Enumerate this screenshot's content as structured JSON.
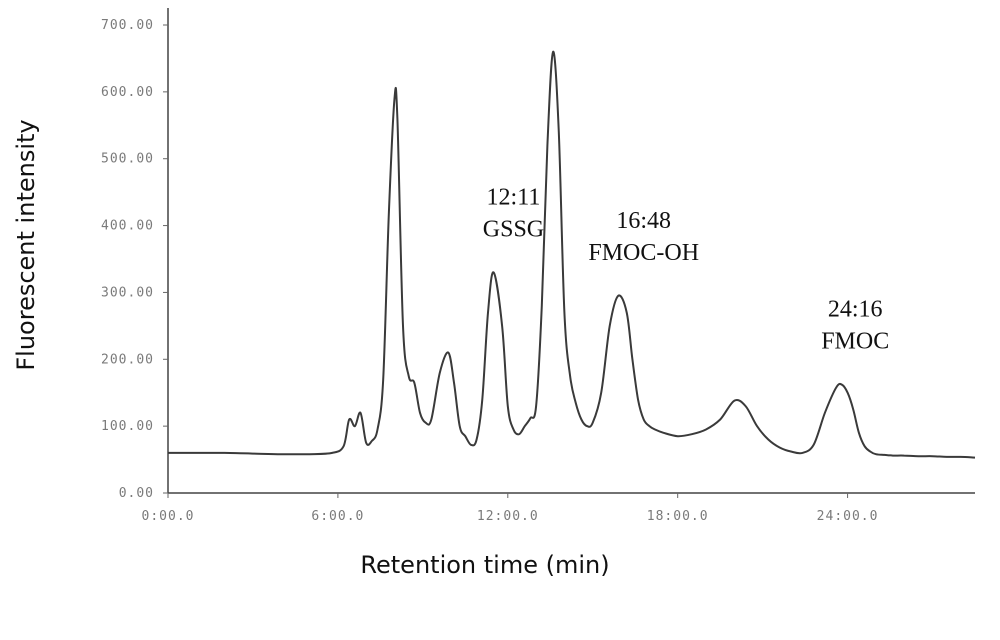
{
  "chart_data": {
    "type": "line",
    "title": "",
    "xlabel": "Retention time (min)",
    "ylabel": "Fluorescent intensity",
    "xlim": [
      0,
      28.5
    ],
    "ylim": [
      0,
      700
    ],
    "x_ticks": [
      0,
      6,
      12,
      18,
      24
    ],
    "x_tick_labels": [
      "0:00.0",
      "6:00.0",
      "12:00.0",
      "18:00.0",
      "24:00.0"
    ],
    "y_ticks": [
      0,
      100,
      200,
      300,
      400,
      500,
      600,
      700
    ],
    "y_tick_labels": [
      "0.00",
      "100.00",
      "200.00",
      "300.00",
      "400.00",
      "500.00",
      "600.00",
      "700.00"
    ],
    "grid": false,
    "series": [
      {
        "x": [
          0,
          1,
          2,
          3,
          4,
          5,
          5.8,
          6.2,
          6.4,
          6.6,
          6.8,
          7.0,
          7.2,
          7.4,
          7.6,
          7.8,
          8.0,
          8.1,
          8.3,
          8.5,
          8.7,
          8.9,
          9.1,
          9.3,
          9.6,
          9.9,
          10.1,
          10.3,
          10.5,
          10.7,
          10.9,
          11.1,
          11.3,
          11.5,
          11.8,
          12.0,
          12.2,
          12.4,
          12.6,
          12.8,
          13.0,
          13.2,
          13.4,
          13.6,
          13.8,
          14.0,
          14.2,
          14.4,
          14.6,
          14.8,
          15.0,
          15.3,
          15.6,
          15.9,
          16.2,
          16.4,
          16.6,
          16.8,
          17.0,
          17.2,
          17.5,
          18.0,
          18.5,
          19.0,
          19.5,
          20.0,
          20.4,
          20.8,
          21.2,
          21.6,
          22.0,
          22.4,
          22.8,
          23.2,
          23.6,
          23.8,
          24.0,
          24.2,
          24.4,
          24.6,
          24.8,
          25.0,
          25.3,
          25.6,
          26,
          26.5,
          27,
          27.5,
          28,
          28.5
        ],
        "y": [
          60,
          60,
          60,
          59,
          58,
          58,
          60,
          70,
          110,
          100,
          120,
          75,
          78,
          95,
          170,
          420,
          590,
          560,
          250,
          175,
          165,
          120,
          105,
          110,
          180,
          210,
          165,
          100,
          85,
          72,
          80,
          140,
          270,
          330,
          250,
          130,
          95,
          88,
          100,
          112,
          130,
          280,
          520,
          660,
          540,
          270,
          175,
          135,
          110,
          100,
          105,
          150,
          250,
          295,
          270,
          200,
          140,
          110,
          100,
          95,
          90,
          85,
          88,
          95,
          110,
          138,
          130,
          100,
          80,
          68,
          62,
          60,
          72,
          120,
          158,
          162,
          150,
          125,
          90,
          70,
          62,
          58,
          57,
          56,
          56,
          55,
          55,
          54,
          54,
          53
        ]
      }
    ],
    "annotations": [
      {
        "time": "12:11",
        "label": "GSSG",
        "x": 12.2,
        "y": 330
      },
      {
        "time": "16:48",
        "label": "FMOC-OH",
        "x": 16.8,
        "y": 295
      },
      {
        "time": "24:16",
        "label": "FMOC",
        "x": 24.27,
        "y": 162
      }
    ]
  }
}
